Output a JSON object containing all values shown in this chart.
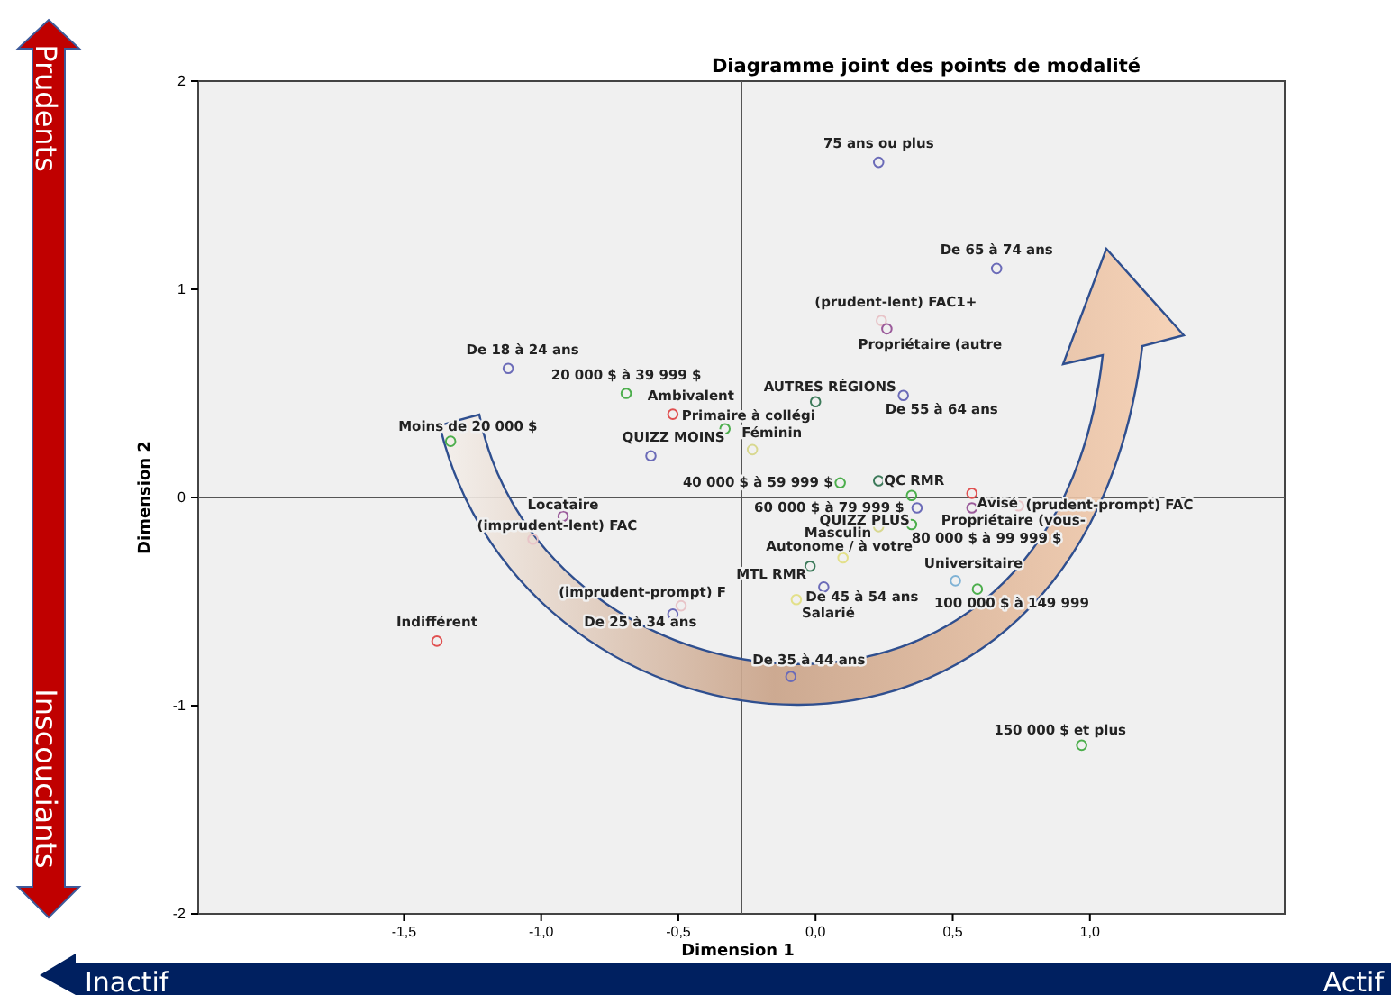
{
  "chart_data": {
    "type": "scatter",
    "title": "Diagramme joint des points de modalité",
    "xlabel": "Dimension 1",
    "ylabel": "Dimension 2",
    "xlim": [
      -2.25,
      1.71
    ],
    "ylim": [
      -2,
      2
    ],
    "xticks": [
      {
        "value": -1.5,
        "label": "-1,5"
      },
      {
        "value": -1,
        "label": "-1,0"
      },
      {
        "value": -0.5,
        "label": "-0,5"
      },
      {
        "value": 0,
        "label": "0,0"
      },
      {
        "value": 0.5,
        "label": "0,5"
      },
      {
        "value": 1,
        "label": "1,0"
      }
    ],
    "yticks": [
      -2,
      -1,
      0,
      1,
      2
    ],
    "grid": false,
    "marker": "circle",
    "ref_lines": [
      {
        "axis": "y",
        "value": 0
      },
      {
        "axis": "x",
        "value": -0.27
      }
    ],
    "x": [
      0.23,
      0.66,
      0.24,
      0.26,
      0.0,
      0.32,
      -1.12,
      -0.69,
      -0.52,
      -0.33,
      -1.33,
      -0.6,
      -0.23,
      0.09,
      0.23,
      0.35,
      0.57,
      0.74,
      0.37,
      0.57,
      0.23,
      0.35,
      0.1,
      -0.02,
      0.51,
      0.03,
      0.59,
      -0.07,
      -0.92,
      -1.03,
      -0.49,
      -0.52,
      -1.38,
      -0.09,
      0.97
    ],
    "values": [
      1.61,
      1.1,
      0.85,
      0.81,
      0.46,
      0.49,
      0.62,
      0.5,
      0.4,
      0.33,
      0.27,
      0.2,
      0.23,
      0.07,
      0.08,
      0.01,
      0.02,
      -0.04,
      -0.05,
      -0.05,
      -0.14,
      -0.13,
      -0.29,
      -0.33,
      -0.4,
      -0.43,
      -0.44,
      -0.49,
      -0.09,
      -0.2,
      -0.52,
      -0.56,
      -0.69,
      -0.86,
      -1.19
    ],
    "colors": [
      "#6b6bb8",
      "#6b6bb8",
      "#e8c4c8",
      "#9a5a9a",
      "#3d7a5a",
      "#6b6bb8",
      "#6b6bb8",
      "#4cae4c",
      "#e05050",
      "#4cae4c",
      "#4cae4c",
      "#6b6bb8",
      "#d8d890",
      "#4cae4c",
      "#3d7a5a",
      "#4cae4c",
      "#e05050",
      "#e8c4c8",
      "#6b6bb8",
      "#9a5a9a",
      "#d8d890",
      "#4cae4c",
      "#e3e08a",
      "#3d7a5a",
      "#7fb2d5",
      "#6b6bb8",
      "#4cae4c",
      "#e3e08a",
      "#9a5a9a",
      "#e8c4c8",
      "#e8c4c8",
      "#6b6bb8",
      "#e05050",
      "#6b6bb8",
      "#4cae4c"
    ],
    "annotations": [
      {
        "text": "75 ans ou plus",
        "x": 0.23,
        "y": 1.61
      },
      {
        "text": "De 65 à 74 ans",
        "x": 0.66,
        "y": 1.1
      },
      {
        "text": "(prudent-lent) FAC1+",
        "x": 0.24,
        "y": 0.85
      },
      {
        "text": "Propriétaire (autre",
        "x": 0.26,
        "y": 0.81
      },
      {
        "text": "AUTRES RÉGIONS",
        "x": 0.0,
        "y": 0.46
      },
      {
        "text": "De 55 à 64 ans",
        "x": 0.32,
        "y": 0.49
      },
      {
        "text": "De 18 à 24 ans",
        "x": -1.12,
        "y": 0.62
      },
      {
        "text": "20 000 $ à 39 999 $",
        "x": -0.69,
        "y": 0.5
      },
      {
        "text": "Ambivalent",
        "x": -0.52,
        "y": 0.4
      },
      {
        "text": "Primaire à collégi",
        "x": -0.33,
        "y": 0.33
      },
      {
        "text": "Moins de 20 000 $",
        "x": -1.33,
        "y": 0.27
      },
      {
        "text": "QUIZZ MOINS",
        "x": -0.6,
        "y": 0.2
      },
      {
        "text": "Féminin",
        "x": -0.23,
        "y": 0.23
      },
      {
        "text": "40 000 $ à 59 999 $",
        "x": 0.09,
        "y": 0.07
      },
      {
        "text": "QC RMR",
        "x": 0.23,
        "y": 0.08
      },
      {
        "text": "60 000 $ à 79 999 $",
        "x": 0.35,
        "y": 0.01
      },
      {
        "text": "Avisé",
        "x": 0.57,
        "y": 0.02
      },
      {
        "text": "(prudent-prompt) FAC",
        "x": 0.74,
        "y": -0.04
      },
      {
        "text": "QUIZZ PLUS",
        "x": 0.37,
        "y": -0.05
      },
      {
        "text": "Propriétaire (vous-",
        "x": 0.57,
        "y": -0.05
      },
      {
        "text": "Masculin",
        "x": 0.23,
        "y": -0.14
      },
      {
        "text": "80 000 $ à 99 999 $",
        "x": 0.35,
        "y": -0.13
      },
      {
        "text": "Autonome / à votre",
        "x": 0.1,
        "y": -0.29
      },
      {
        "text": "MTL RMR",
        "x": -0.02,
        "y": -0.33
      },
      {
        "text": "Universitaire",
        "x": 0.51,
        "y": -0.4
      },
      {
        "text": "De 45 à 54 ans",
        "x": 0.03,
        "y": -0.43
      },
      {
        "text": "100 000 $ à 149 999",
        "x": 0.59,
        "y": -0.44
      },
      {
        "text": "Salarié",
        "x": -0.07,
        "y": -0.49
      },
      {
        "text": "Locataire",
        "x": -0.92,
        "y": -0.09
      },
      {
        "text": "(imprudent-lent) FAC",
        "x": -1.03,
        "y": -0.2
      },
      {
        "text": "(imprudent-prompt) F",
        "x": -0.49,
        "y": -0.52
      },
      {
        "text": "De 25 à 34 ans",
        "x": -0.52,
        "y": -0.56
      },
      {
        "text": "Indifférent",
        "x": -1.38,
        "y": -0.69
      },
      {
        "text": "De 35 à 44 ans",
        "x": -0.09,
        "y": -0.86
      },
      {
        "text": "150 000 $ et plus",
        "x": 0.97,
        "y": -1.19
      },
      "Prudents",
      "Inscouciants",
      "Inactif",
      "Actif"
    ]
  }
}
